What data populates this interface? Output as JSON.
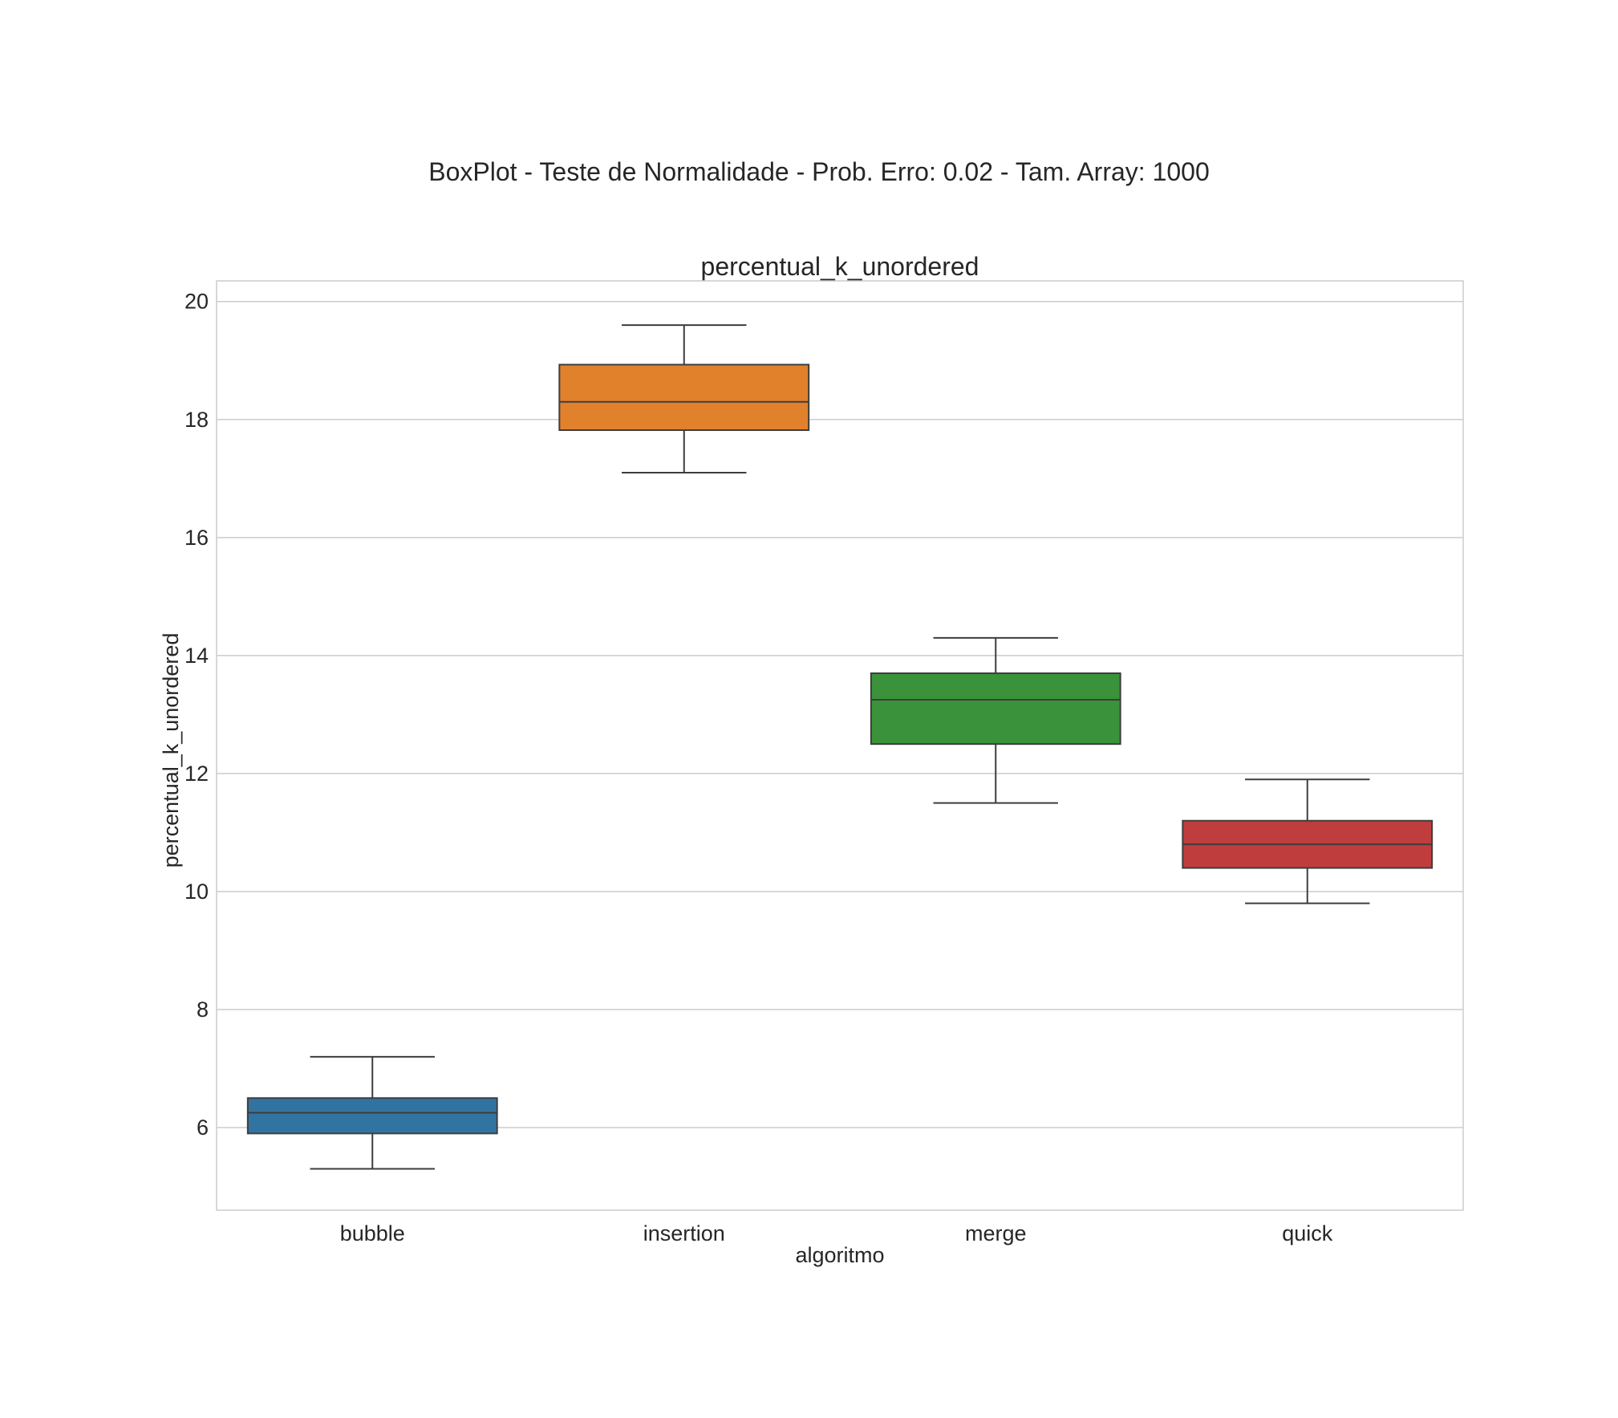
{
  "chart_data": {
    "type": "box",
    "suptitle": "BoxPlot - Teste de Normalidade - Prob. Erro: 0.02 - Tam. Array: 1000",
    "title": "percentual_k_unordered",
    "xlabel": "algoritmo",
    "ylabel": "percentual_k_unordered",
    "ylim": [
      4.6,
      20.35
    ],
    "yticks": [
      6,
      8,
      10,
      12,
      14,
      16,
      18,
      20
    ],
    "grid": true,
    "categories": [
      "bubble",
      "insertion",
      "merge",
      "quick"
    ],
    "boxes": [
      {
        "category": "bubble",
        "whisker_low": 5.3,
        "q1": 5.9,
        "median": 6.25,
        "q3": 6.5,
        "whisker_high": 7.2,
        "color": "#3274a1"
      },
      {
        "category": "insertion",
        "whisker_low": 17.1,
        "q1": 17.82,
        "median": 18.3,
        "q3": 18.93,
        "whisker_high": 19.6,
        "color": "#e1812c"
      },
      {
        "category": "merge",
        "whisker_low": 11.5,
        "q1": 12.5,
        "median": 13.25,
        "q3": 13.7,
        "whisker_high": 14.3,
        "color": "#3a923a"
      },
      {
        "category": "quick",
        "whisker_low": 9.8,
        "q1": 10.4,
        "median": 10.8,
        "q3": 11.2,
        "whisker_high": 11.9,
        "color": "#c03d3e"
      }
    ]
  }
}
